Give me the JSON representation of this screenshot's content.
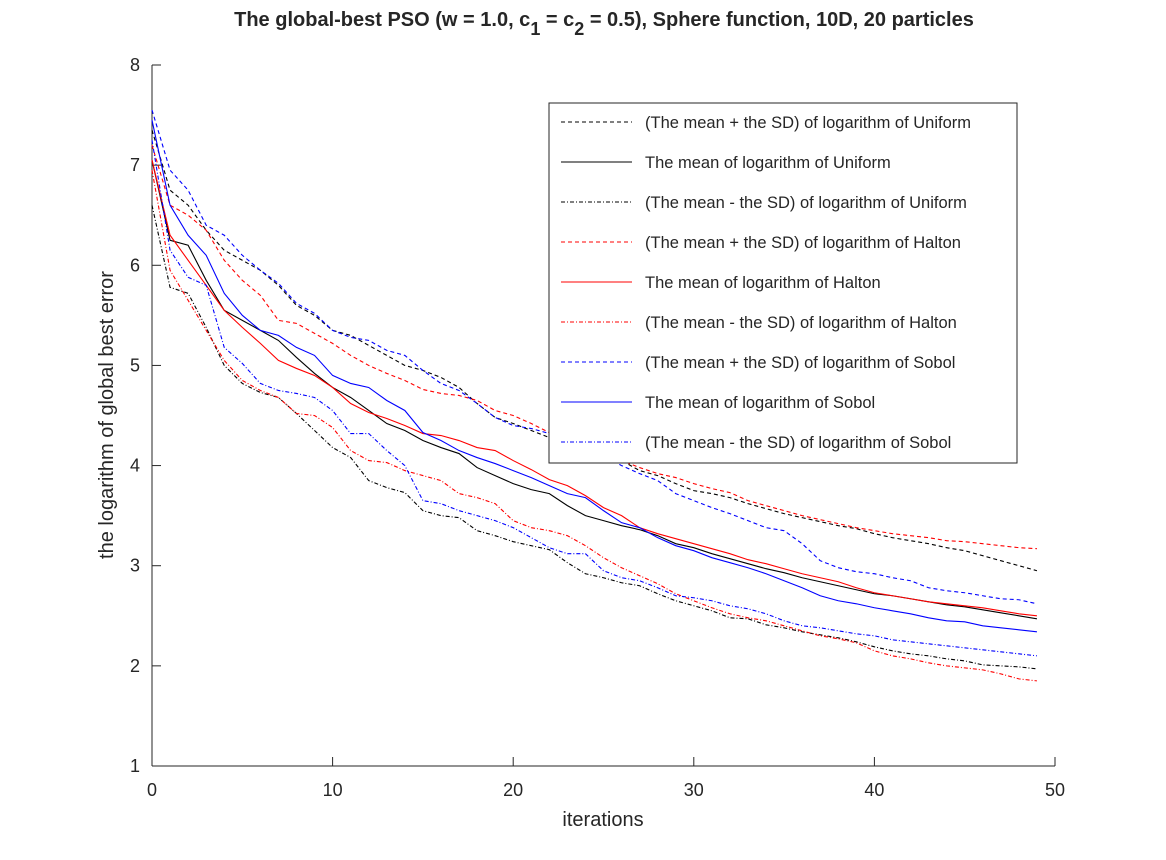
{
  "chart_data": {
    "type": "line",
    "title_parts": {
      "a": "The global-best PSO (w = 1.0, c",
      "b": "1",
      "c": " = c",
      "d": "2",
      "e": " = 0.5), Sphere function, 10D, 20 particles"
    },
    "xlabel": "iterations",
    "ylabel": "the logarithm of global best error",
    "xlim": [
      0,
      50
    ],
    "ylim": [
      1,
      8
    ],
    "xticks": [
      "0",
      "10",
      "20",
      "30",
      "40",
      "50"
    ],
    "yticks": [
      "1",
      "2",
      "3",
      "4",
      "5",
      "6",
      "7",
      "8"
    ],
    "grid": false,
    "legend_position": "top-right",
    "x": [
      0,
      1,
      2,
      3,
      4,
      5,
      6,
      7,
      8,
      9,
      10,
      11,
      12,
      13,
      14,
      15,
      16,
      17,
      18,
      19,
      20,
      21,
      22,
      23,
      24,
      25,
      26,
      27,
      28,
      29,
      30,
      31,
      32,
      33,
      34,
      35,
      36,
      37,
      38,
      39,
      40,
      41,
      42,
      43,
      44,
      45,
      46,
      47,
      48,
      49
    ],
    "series": [
      {
        "name": "(The mean + the SD) of logarithm of Uniform",
        "color": "#000000",
        "style": "dashed",
        "values": [
          7.35,
          6.75,
          6.6,
          6.35,
          6.15,
          6.05,
          5.95,
          5.8,
          5.6,
          5.5,
          5.35,
          5.3,
          5.2,
          5.1,
          5.0,
          4.95,
          4.88,
          4.78,
          4.62,
          4.48,
          4.42,
          4.35,
          4.28,
          4.27,
          4.2,
          4.1,
          4.05,
          3.95,
          3.9,
          3.82,
          3.75,
          3.72,
          3.68,
          3.62,
          3.57,
          3.52,
          3.48,
          3.44,
          3.4,
          3.37,
          3.32,
          3.28,
          3.25,
          3.22,
          3.18,
          3.15,
          3.1,
          3.05,
          3.0,
          2.95
        ]
      },
      {
        "name": "The mean of logarithm of Uniform",
        "color": "#000000",
        "style": "solid",
        "values": [
          7.05,
          6.25,
          6.2,
          5.85,
          5.55,
          5.45,
          5.35,
          5.25,
          5.08,
          4.92,
          4.78,
          4.68,
          4.55,
          4.42,
          4.35,
          4.25,
          4.18,
          4.12,
          3.98,
          3.9,
          3.82,
          3.76,
          3.72,
          3.6,
          3.5,
          3.45,
          3.4,
          3.36,
          3.3,
          3.22,
          3.18,
          3.12,
          3.07,
          3.02,
          2.97,
          2.93,
          2.88,
          2.84,
          2.8,
          2.76,
          2.72,
          2.7,
          2.67,
          2.64,
          2.61,
          2.59,
          2.56,
          2.53,
          2.5,
          2.47
        ]
      },
      {
        "name": "(The mean - the SD) of logarithm of Uniform",
        "color": "#000000",
        "style": "dashdot",
        "values": [
          6.6,
          5.78,
          5.72,
          5.38,
          5.0,
          4.82,
          4.73,
          4.68,
          4.52,
          4.35,
          4.18,
          4.08,
          3.85,
          3.78,
          3.73,
          3.55,
          3.5,
          3.48,
          3.35,
          3.3,
          3.24,
          3.2,
          3.16,
          3.03,
          2.92,
          2.88,
          2.83,
          2.8,
          2.72,
          2.65,
          2.6,
          2.55,
          2.48,
          2.47,
          2.41,
          2.38,
          2.34,
          2.31,
          2.28,
          2.24,
          2.19,
          2.15,
          2.12,
          2.1,
          2.07,
          2.05,
          2.01,
          2.0,
          1.99,
          1.97
        ]
      },
      {
        "name": "(The mean + the SD) of logarithm of Halton",
        "color": "#ff0000",
        "style": "dashed",
        "values": [
          7.2,
          6.6,
          6.5,
          6.35,
          6.05,
          5.85,
          5.7,
          5.45,
          5.42,
          5.32,
          5.22,
          5.1,
          5.0,
          4.92,
          4.85,
          4.76,
          4.72,
          4.7,
          4.65,
          4.55,
          4.5,
          4.42,
          4.33,
          4.27,
          4.18,
          4.1,
          4.05,
          3.98,
          3.92,
          3.88,
          3.82,
          3.77,
          3.73,
          3.65,
          3.6,
          3.55,
          3.5,
          3.46,
          3.42,
          3.38,
          3.35,
          3.32,
          3.3,
          3.28,
          3.25,
          3.24,
          3.22,
          3.2,
          3.18,
          3.17
        ]
      },
      {
        "name": "The mean of logarithm of Halton",
        "color": "#ff0000",
        "style": "solid",
        "values": [
          7.05,
          6.3,
          6.05,
          5.8,
          5.55,
          5.38,
          5.22,
          5.05,
          4.97,
          4.9,
          4.78,
          4.62,
          4.53,
          4.47,
          4.4,
          4.32,
          4.3,
          4.25,
          4.18,
          4.15,
          4.05,
          3.96,
          3.86,
          3.8,
          3.7,
          3.58,
          3.5,
          3.38,
          3.32,
          3.27,
          3.22,
          3.17,
          3.12,
          3.06,
          3.02,
          2.97,
          2.92,
          2.88,
          2.84,
          2.78,
          2.73,
          2.7,
          2.67,
          2.64,
          2.62,
          2.6,
          2.58,
          2.55,
          2.52,
          2.5
        ]
      },
      {
        "name": "(The mean - the SD) of logarithm of Halton",
        "color": "#ff0000",
        "style": "dashdot",
        "values": [
          6.95,
          5.95,
          5.65,
          5.35,
          5.05,
          4.85,
          4.75,
          4.68,
          4.52,
          4.5,
          4.38,
          4.15,
          4.05,
          4.03,
          3.95,
          3.9,
          3.85,
          3.72,
          3.68,
          3.62,
          3.45,
          3.38,
          3.35,
          3.3,
          3.2,
          3.08,
          2.98,
          2.9,
          2.82,
          2.72,
          2.65,
          2.58,
          2.52,
          2.48,
          2.45,
          2.4,
          2.35,
          2.3,
          2.27,
          2.23,
          2.15,
          2.1,
          2.07,
          2.03,
          2.0,
          1.98,
          1.96,
          1.92,
          1.87,
          1.85
        ]
      },
      {
        "name": "(The mean + the SD) of logarithm of Sobol",
        "color": "#0000ff",
        "style": "dashed",
        "values": [
          7.55,
          6.95,
          6.75,
          6.4,
          6.3,
          6.1,
          5.95,
          5.82,
          5.62,
          5.52,
          5.35,
          5.28,
          5.25,
          5.15,
          5.1,
          4.95,
          4.82,
          4.75,
          4.62,
          4.48,
          4.4,
          4.37,
          4.32,
          4.27,
          4.2,
          4.1,
          4.0,
          3.92,
          3.85,
          3.72,
          3.65,
          3.58,
          3.52,
          3.45,
          3.38,
          3.35,
          3.22,
          3.05,
          2.98,
          2.94,
          2.92,
          2.88,
          2.85,
          2.78,
          2.75,
          2.73,
          2.7,
          2.67,
          2.66,
          2.62
        ]
      },
      {
        "name": "The mean of logarithm of Sobol",
        "color": "#0000ff",
        "style": "solid",
        "values": [
          7.45,
          6.6,
          6.3,
          6.1,
          5.72,
          5.5,
          5.35,
          5.3,
          5.18,
          5.1,
          4.9,
          4.82,
          4.78,
          4.65,
          4.55,
          4.33,
          4.25,
          4.15,
          4.08,
          4.02,
          3.95,
          3.88,
          3.8,
          3.72,
          3.68,
          3.55,
          3.43,
          3.38,
          3.28,
          3.2,
          3.15,
          3.08,
          3.03,
          2.98,
          2.92,
          2.85,
          2.78,
          2.7,
          2.65,
          2.62,
          2.58,
          2.55,
          2.52,
          2.48,
          2.45,
          2.44,
          2.4,
          2.38,
          2.36,
          2.34
        ]
      },
      {
        "name": "(The mean - the SD) of logarithm of Sobol",
        "color": "#0000ff",
        "style": "dashdot",
        "values": [
          7.25,
          6.15,
          5.88,
          5.8,
          5.18,
          5.02,
          4.82,
          4.75,
          4.72,
          4.68,
          4.55,
          4.32,
          4.32,
          4.15,
          4.0,
          3.65,
          3.62,
          3.55,
          3.5,
          3.45,
          3.38,
          3.28,
          3.18,
          3.12,
          3.12,
          2.95,
          2.88,
          2.85,
          2.78,
          2.7,
          2.68,
          2.65,
          2.6,
          2.57,
          2.52,
          2.45,
          2.4,
          2.38,
          2.35,
          2.32,
          2.3,
          2.26,
          2.24,
          2.22,
          2.2,
          2.18,
          2.16,
          2.14,
          2.12,
          2.1
        ]
      }
    ]
  }
}
